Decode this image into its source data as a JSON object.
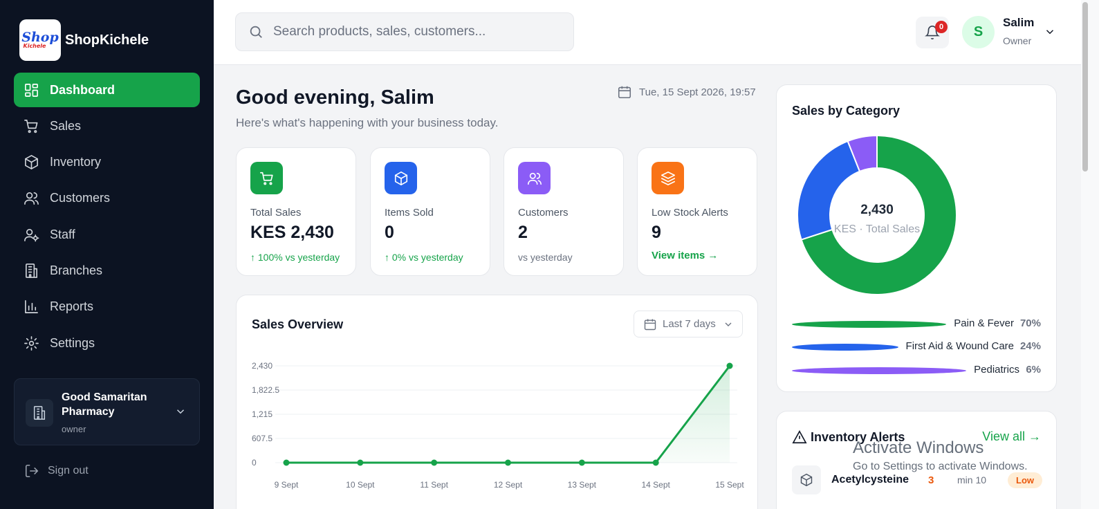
{
  "sidebar": {
    "logo": {
      "line1": "Shop",
      "line2": "Kichele"
    },
    "brand": "ShopKichele",
    "items": [
      {
        "label": "Dashboard",
        "icon": "dashboard-icon"
      },
      {
        "label": "Sales",
        "icon": "cart-icon"
      },
      {
        "label": "Inventory",
        "icon": "box-icon"
      },
      {
        "label": "Customers",
        "icon": "users-icon"
      },
      {
        "label": "Staff",
        "icon": "user-gear-icon"
      },
      {
        "label": "Branches",
        "icon": "building-icon"
      },
      {
        "label": "Reports",
        "icon": "bar-chart-icon"
      },
      {
        "label": "Settings",
        "icon": "gear-icon"
      }
    ],
    "branch": {
      "name": "Good Samaritan Pharmacy",
      "role": "owner"
    },
    "signout": "Sign out"
  },
  "topbar": {
    "search_placeholder": "Search products, sales, customers...",
    "notifications": "0",
    "avatar_initial": "S",
    "user_name": "Salim",
    "user_role": "Owner"
  },
  "greeting": {
    "title": "Good evening, Salim",
    "subtitle": "Here's what's happening with your business today.",
    "datetime": "Tue, 15 Sept 2026, 19:57"
  },
  "stats": [
    {
      "label": "Total Sales",
      "value": "KES 2,430",
      "note": "↑ 100% vs yesterday",
      "color": "#16a34a",
      "icon": "cart-icon"
    },
    {
      "label": "Items Sold",
      "value": "0",
      "note": "↑ 0% vs yesterday",
      "color": "#2563eb",
      "icon": "box-icon"
    },
    {
      "label": "Customers",
      "value": "2",
      "note": "vs yesterday",
      "color": "#8b5cf6",
      "icon": "users-icon"
    },
    {
      "label": "Low Stock Alerts",
      "value": "9",
      "link": "View items →",
      "color": "#f97316",
      "icon": "layers-icon"
    }
  ],
  "overview": {
    "title": "Sales Overview",
    "range": "Last 7 days"
  },
  "categories": {
    "title": "Sales by Category",
    "center_value": "2,430",
    "center_label": "KES · Total Sales"
  },
  "alerts": {
    "title": "Inventory Alerts",
    "view_all": "View all →",
    "items": [
      {
        "name": "Acetylcysteine",
        "qty": "3",
        "min": "min 10",
        "status": "Low"
      }
    ]
  },
  "watermark": {
    "line1": "Activate Windows",
    "line2": "Go to Settings to activate Windows."
  },
  "chart_data": [
    {
      "type": "area",
      "title": "Sales Overview",
      "categories": [
        "9 Sept",
        "10 Sept",
        "11 Sept",
        "12 Sept",
        "13 Sept",
        "14 Sept",
        "15 Sept"
      ],
      "values": [
        0,
        0,
        0,
        0,
        0,
        0,
        2430
      ],
      "yticks": [
        "2,430",
        "1,822.5",
        "1,215",
        "607.5",
        "0"
      ],
      "ylim": [
        0,
        2430
      ],
      "grid": true,
      "color": "#16a34a"
    },
    {
      "type": "pie",
      "title": "Sales by Category",
      "categories": [
        "Pain & Fever",
        "First Aid & Wound Care",
        "Pediatrics"
      ],
      "values": [
        70,
        24,
        6
      ],
      "labels": [
        "70%",
        "24%",
        "6%"
      ],
      "colors": [
        "#16a34a",
        "#2563eb",
        "#8b5cf6"
      ]
    }
  ]
}
